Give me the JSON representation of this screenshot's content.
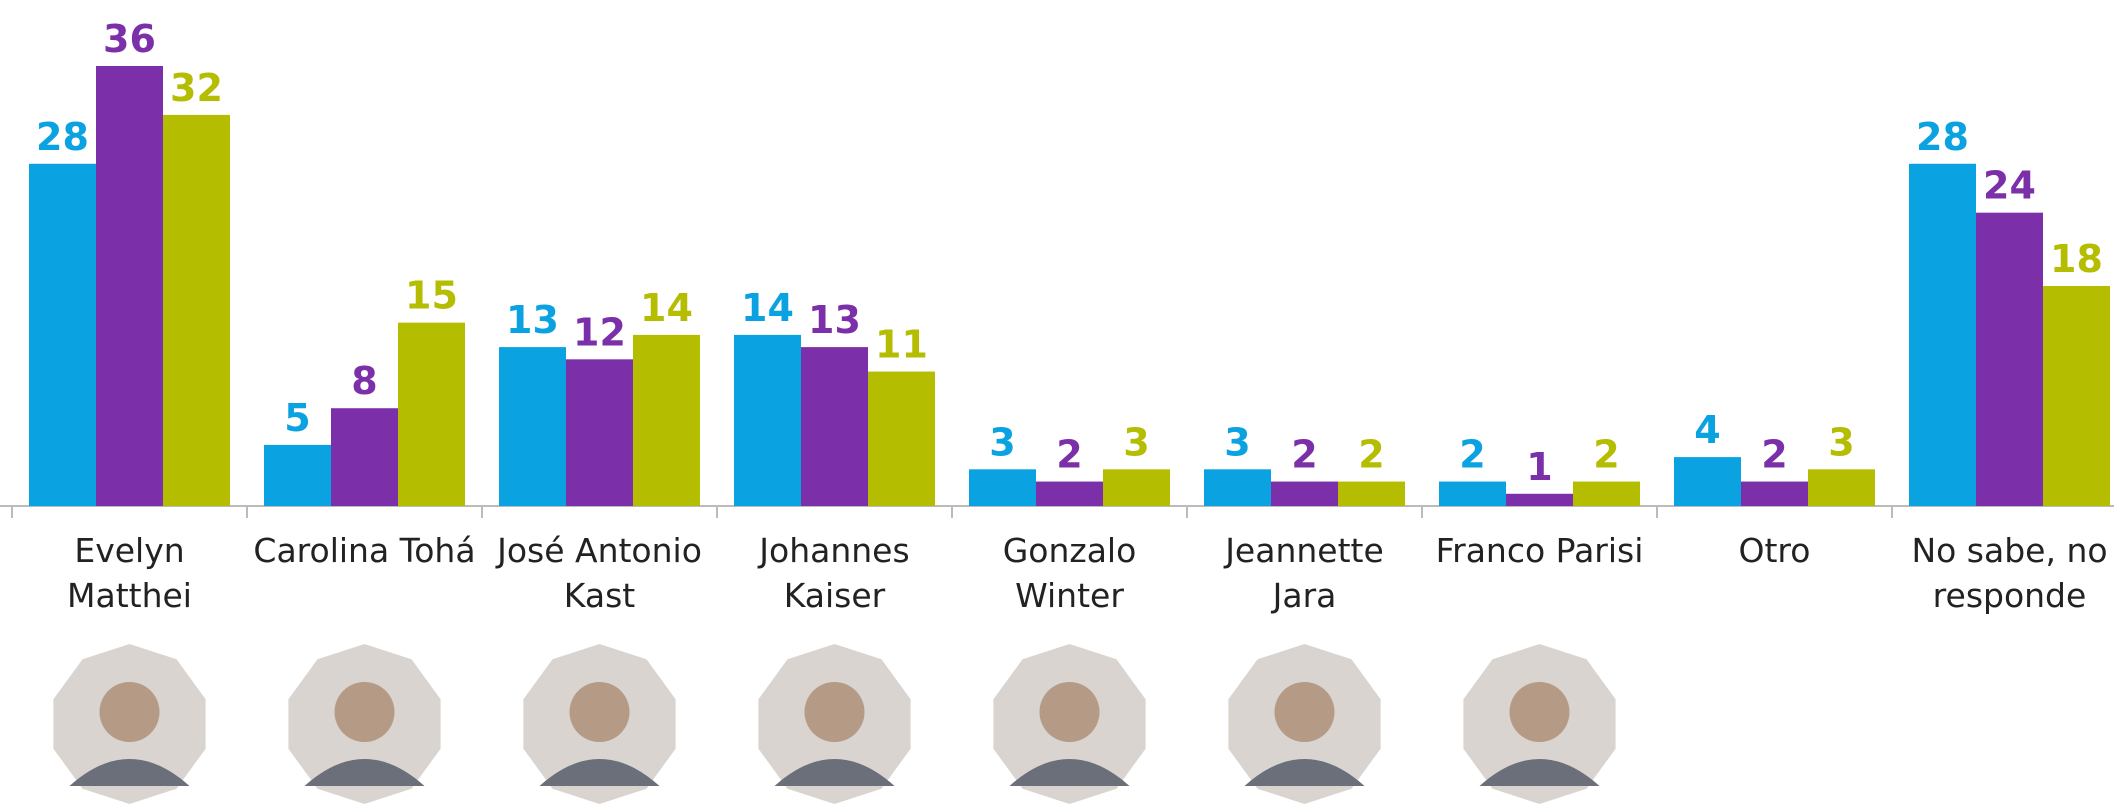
{
  "chart_data": {
    "type": "bar",
    "categories": [
      "Evelyn Matthei",
      "Carolina Tohá",
      "José Antonio Kast",
      "Johannes Kaiser",
      "Gonzalo Winter",
      "Jeannette Jara",
      "Franco Parisi",
      "Otro",
      "No sabe, no responde"
    ],
    "series": [
      {
        "color": "#0aa2e0",
        "values": [
          28,
          5,
          13,
          14,
          3,
          3,
          2,
          4,
          28
        ]
      },
      {
        "color": "#7b2fa8",
        "values": [
          36,
          8,
          12,
          13,
          2,
          2,
          1,
          2,
          24
        ]
      },
      {
        "color": "#b5bd00",
        "values": [
          32,
          15,
          14,
          11,
          3,
          2,
          2,
          3,
          18
        ]
      }
    ]
  }
}
